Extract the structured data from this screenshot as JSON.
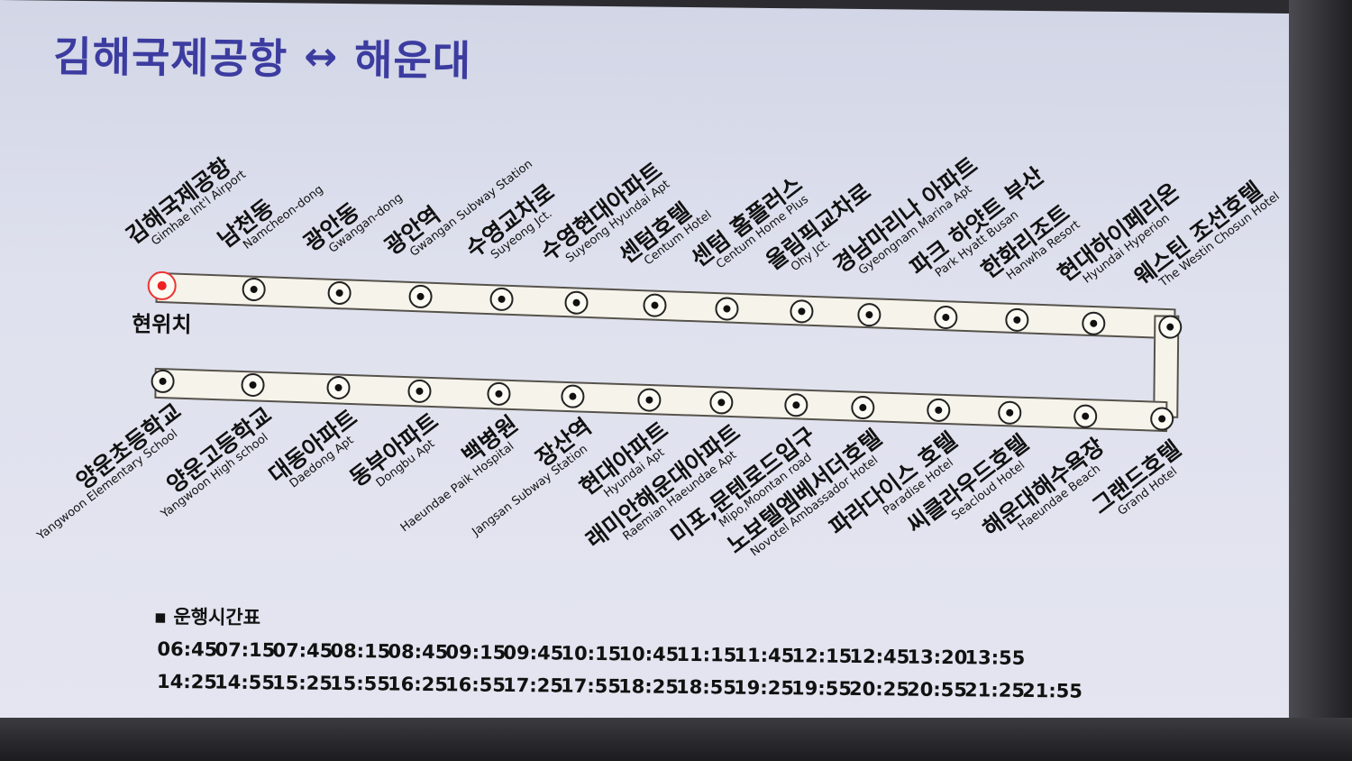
{
  "title": {
    "origin": "김해국제공항",
    "arrow": "↔",
    "destination": "해운대"
  },
  "current_location_label": "현위치",
  "route_color": "#f6f4ea",
  "title_color": "#3c3ca0",
  "top_stations": [
    {
      "ko": "김해국제공항",
      "en": "Gimhae Int'l Airport",
      "current": true
    },
    {
      "ko": "남천동",
      "en": "Namcheon-dong"
    },
    {
      "ko": "광안동",
      "en": "Gwangan-dong"
    },
    {
      "ko": "광안역",
      "en": "Gwangan Subway Station"
    },
    {
      "ko": "수영교차로",
      "en": "Suyeong Jct."
    },
    {
      "ko": "수영현대아파트",
      "en": "Suyeong Hyundai Apt"
    },
    {
      "ko": "센텀호텔",
      "en": "Centum Hotel"
    },
    {
      "ko": "센텀 홈플러스",
      "en": "Centum Home Plus"
    },
    {
      "ko": "올림픽교차로",
      "en": "Ohy Jct."
    },
    {
      "ko": "경남마리나 아파트",
      "en": "Gyeongnam Marina Apt"
    },
    {
      "ko": "파크 하얏트 부산",
      "en": "Park Hyatt Busan"
    },
    {
      "ko": "한화리조트",
      "en": "Hanwha Resort"
    },
    {
      "ko": "현대하이페리온",
      "en": "Hyundai Hyperion"
    },
    {
      "ko": "웨스틴 조선호텔",
      "en": "The Westin Chosun Hotel"
    }
  ],
  "bottom_stations": [
    {
      "ko": "양운초등학교",
      "en": "Yangwoon Elementary School"
    },
    {
      "ko": "양운고등학교",
      "en": "Yangwoon High school"
    },
    {
      "ko": "대동아파트",
      "en": "Daedong Apt"
    },
    {
      "ko": "동부아파트",
      "en": "Dongbu Apt"
    },
    {
      "ko": "백병원",
      "en": "Haeundae Paik Hospital"
    },
    {
      "ko": "장산역",
      "en": "Jangsan Subway Station"
    },
    {
      "ko": "현대아파트",
      "en": "Hyundai Apt"
    },
    {
      "ko": "래미안해운대아파트",
      "en": "Raemian Haeundae Apt"
    },
    {
      "ko": "미포,문텐로드입구",
      "en": "Mipo,Moontan road"
    },
    {
      "ko": "노보텔엠베서더호텔",
      "en": "Novotel Ambassador Hotel"
    },
    {
      "ko": "파라다이스 호텔",
      "en": "Paradise Hotel"
    },
    {
      "ko": "씨클라우드호텔",
      "en": "Seacloud Hotel"
    },
    {
      "ko": "해운대해수욕장",
      "en": "Haeundae Beach"
    },
    {
      "ko": "그랜드호텔",
      "en": "Grand Hotel"
    }
  ],
  "schedule": {
    "title": "▪ 운행시간표",
    "rows": [
      [
        "06:45",
        "07:15",
        "07:45",
        "08:15",
        "08:45",
        "09:15",
        "09:45",
        "10:15",
        "10:45",
        "11:15",
        "11:45",
        "12:15",
        "12:45",
        "13:20",
        "13:55"
      ],
      [
        "14:25",
        "14:55",
        "15:25",
        "15:55",
        "16:25",
        "16:55",
        "17:25",
        "17:55",
        "18:25",
        "18:55",
        "19:25",
        "19:55",
        "20:25",
        "20:55",
        "21:25",
        "21:55"
      ]
    ]
  }
}
